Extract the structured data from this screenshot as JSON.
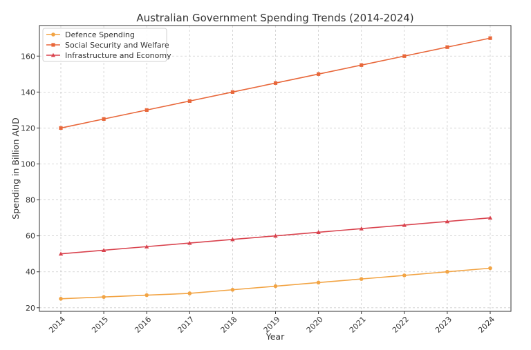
{
  "chart_data": {
    "type": "line",
    "title": "Australian Government Spending Trends (2014-2024)",
    "xlabel": "Year",
    "ylabel": "Spending in Billion AUD",
    "categories": [
      "2014",
      "2015",
      "2016",
      "2017",
      "2018",
      "2019",
      "2020",
      "2021",
      "2022",
      "2023",
      "2024"
    ],
    "ylim": [
      18,
      177
    ],
    "yticks": [
      20,
      40,
      60,
      80,
      100,
      120,
      140,
      160
    ],
    "grid": true,
    "legend_position": "top-left",
    "series": [
      {
        "name": "Defence Spending",
        "color": "#f2a444",
        "marker": "circle",
        "values": [
          25,
          26,
          27,
          28,
          30,
          32,
          34,
          36,
          38,
          40,
          42
        ]
      },
      {
        "name": "Social Security and Welfare",
        "color": "#e8673a",
        "marker": "square",
        "values": [
          120,
          125,
          130,
          135,
          140,
          145,
          150,
          155,
          160,
          165,
          170
        ]
      },
      {
        "name": "Infrastructure and Economy",
        "color": "#d9434e",
        "marker": "triangle",
        "values": [
          50,
          52,
          54,
          56,
          58,
          60,
          62,
          64,
          66,
          68,
          70
        ]
      }
    ]
  }
}
